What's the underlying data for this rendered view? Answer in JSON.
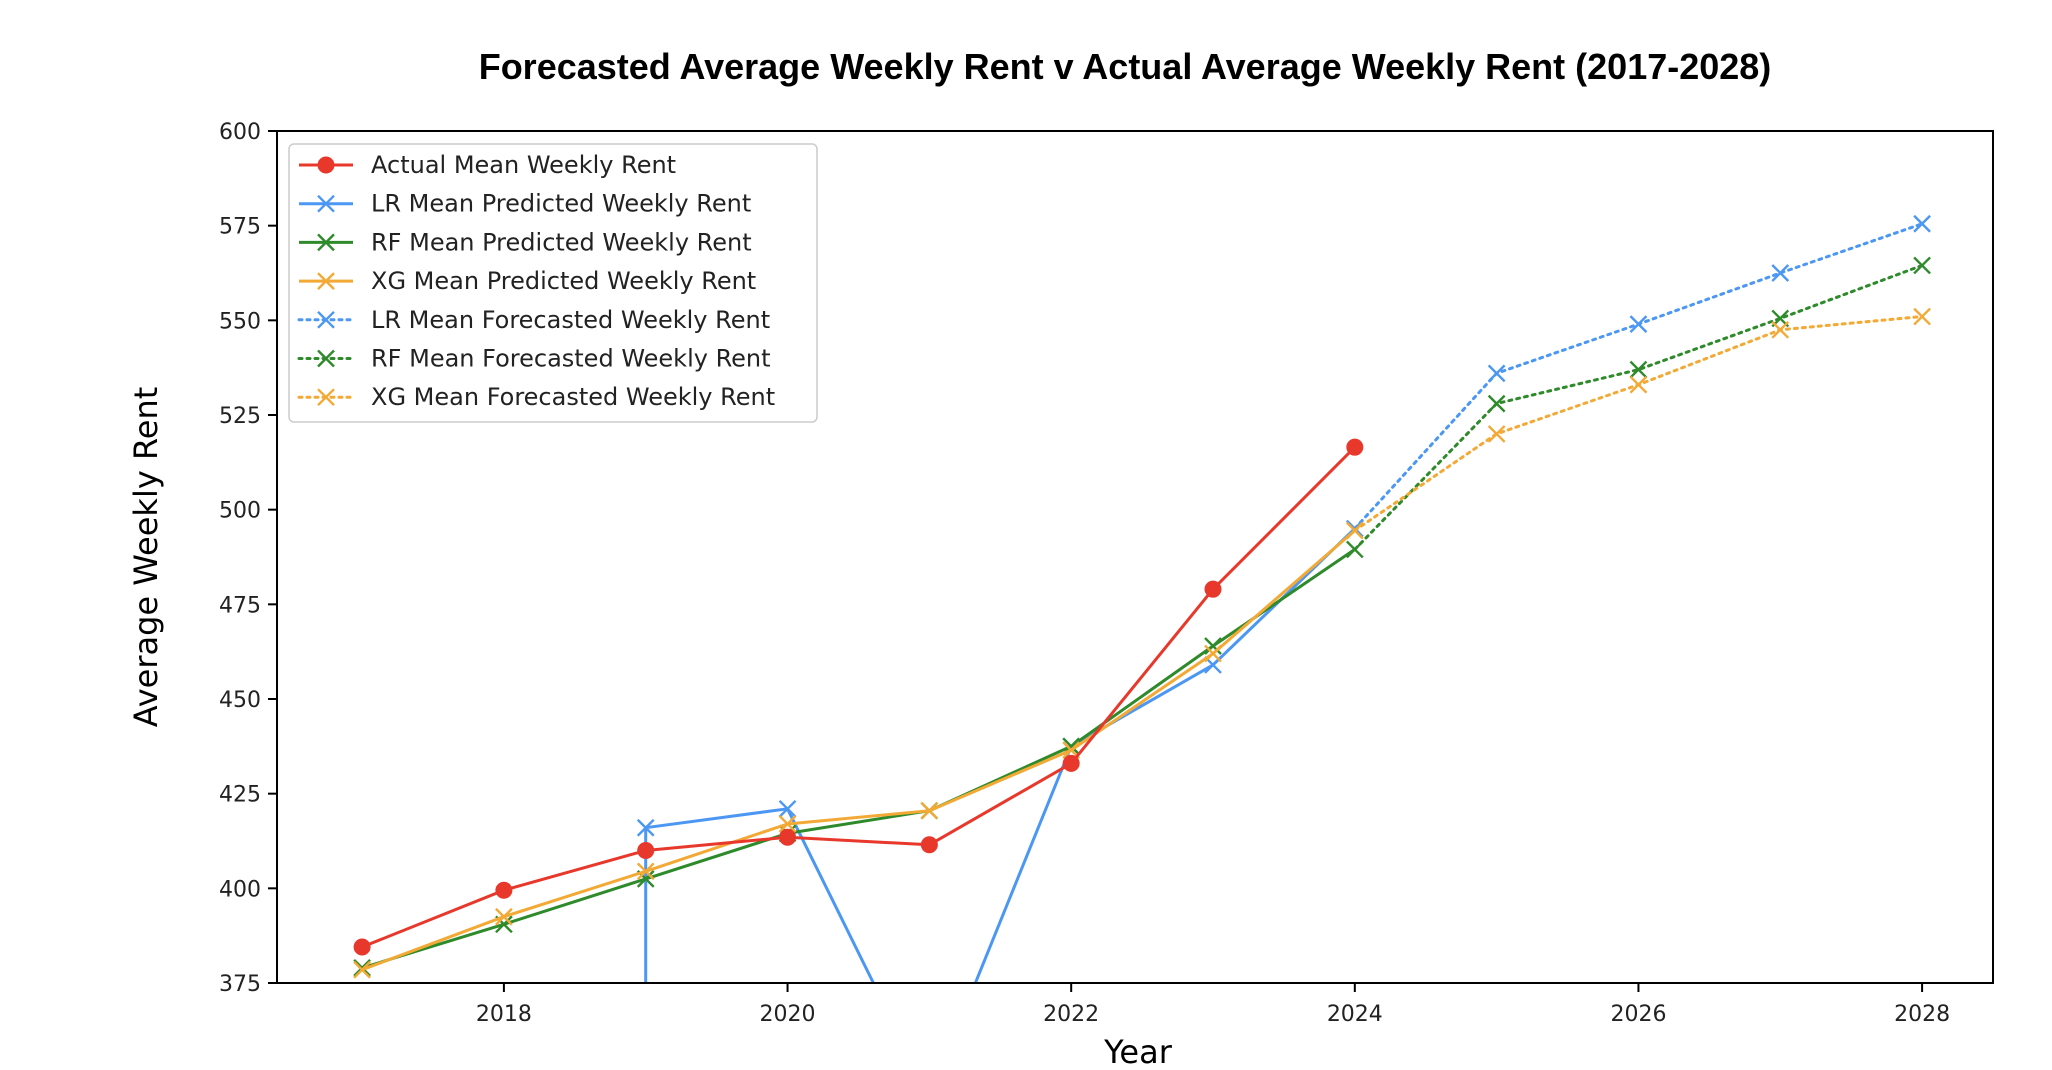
{
  "chart_data": {
    "type": "line",
    "title": "Forecasted Average Weekly Rent v Actual Average Weekly Rent (2017-2028)",
    "xlabel": "Year",
    "ylabel": "Average Weekly Rent",
    "xlim": [
      2016.4,
      2028.5
    ],
    "ylim": [
      375,
      600
    ],
    "x_ticks": [
      2018,
      2020,
      2022,
      2024,
      2026,
      2028
    ],
    "y_ticks": [
      375,
      400,
      425,
      450,
      475,
      500,
      525,
      550,
      575,
      600
    ],
    "grid": false,
    "legend_position": "top-left",
    "series": [
      {
        "name": "Actual Mean Weekly Rent",
        "color": "#e8382c",
        "style": "solid",
        "marker": "circle",
        "x": [
          2017,
          2018,
          2019,
          2020,
          2021,
          2022,
          2023,
          2024
        ],
        "values": [
          384.5,
          399.5,
          410,
          413.5,
          411.5,
          433,
          479,
          516.5
        ]
      },
      {
        "name": "LR Mean Predicted Weekly Rent",
        "color": "#4b97f3",
        "style": "solid",
        "marker": "x",
        "x": [
          2019,
          2019,
          2020,
          2021,
          2022,
          2023,
          2024
        ],
        "values": [
          375,
          416,
          421,
          345,
          437.5,
          459,
          495
        ],
        "marker_mask": [
          false,
          true,
          true,
          false,
          true,
          true,
          true
        ]
      },
      {
        "name": "RF Mean Predicted Weekly Rent",
        "color": "#2e8a2a",
        "style": "solid",
        "marker": "x",
        "x": [
          2017,
          2018,
          2019,
          2020,
          2021,
          2022,
          2023,
          2024
        ],
        "values": [
          379,
          390.5,
          402.5,
          414.5,
          420.5,
          437.5,
          464,
          489.5
        ]
      },
      {
        "name": "XG Mean Predicted Weekly Rent",
        "color": "#f3a935",
        "style": "solid",
        "marker": "x",
        "x": [
          2017,
          2018,
          2019,
          2020,
          2021,
          2022,
          2023,
          2024
        ],
        "values": [
          378.5,
          392.5,
          404.5,
          417,
          420.5,
          436.5,
          462,
          494.5
        ]
      },
      {
        "name": "LR Mean Forecasted Weekly Rent",
        "color": "#4b97f3",
        "style": "dotted",
        "marker": "x",
        "x": [
          2024,
          2025,
          2026,
          2027,
          2028
        ],
        "values": [
          495,
          536,
          549,
          562.5,
          575.5
        ]
      },
      {
        "name": "RF Mean Forecasted Weekly Rent",
        "color": "#2e8a2a",
        "style": "dotted",
        "marker": "x",
        "x": [
          2024,
          2025,
          2026,
          2027,
          2028
        ],
        "values": [
          489.5,
          528,
          537,
          550.5,
          564.5
        ]
      },
      {
        "name": "XG Mean Forecasted Weekly Rent",
        "color": "#f3a935",
        "style": "dotted",
        "marker": "x",
        "x": [
          2024,
          2025,
          2026,
          2027,
          2028
        ],
        "values": [
          494.5,
          520,
          533,
          547.5,
          551
        ]
      }
    ]
  }
}
